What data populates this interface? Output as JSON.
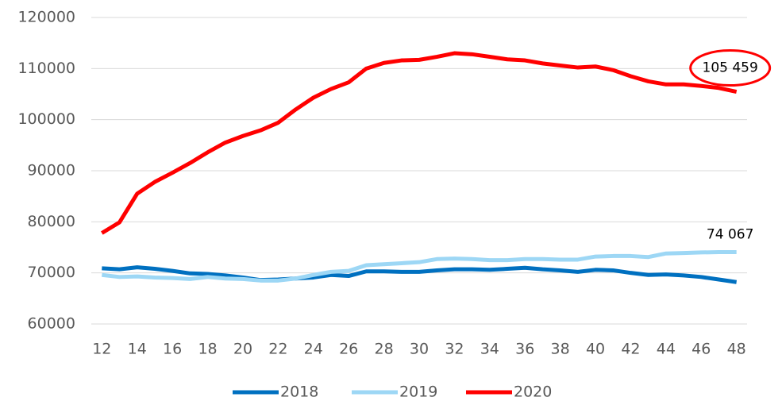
{
  "chart_data": {
    "type": "line",
    "x": [
      12,
      13,
      14,
      15,
      16,
      17,
      18,
      19,
      20,
      21,
      22,
      23,
      24,
      25,
      26,
      27,
      28,
      29,
      30,
      31,
      32,
      33,
      34,
      35,
      36,
      37,
      38,
      39,
      40,
      41,
      42,
      43,
      44,
      45,
      46,
      47,
      48
    ],
    "series": [
      {
        "name": "2018",
        "color": "#0070c0",
        "values": [
          70900,
          70700,
          71100,
          70800,
          70400,
          69900,
          69800,
          69500,
          69100,
          68600,
          68700,
          68900,
          69100,
          69600,
          69400,
          70300,
          70300,
          70200,
          70200,
          70500,
          70700,
          70700,
          70600,
          70800,
          71000,
          70700,
          70500,
          70200,
          70600,
          70500,
          70000,
          69600,
          69700,
          69500,
          69200,
          68700,
          68200
        ]
      },
      {
        "name": "2019",
        "color": "#9dd7f5",
        "values": [
          69600,
          69200,
          69300,
          69100,
          69000,
          68800,
          69200,
          68900,
          68800,
          68500,
          68500,
          68900,
          69600,
          70200,
          70400,
          71500,
          71700,
          71900,
          72100,
          72700,
          72800,
          72700,
          72500,
          72500,
          72700,
          72700,
          72600,
          72600,
          73200,
          73300,
          73300,
          73100,
          73800,
          73900,
          74000,
          74067,
          74067
        ],
        "value_labels": [
          null,
          null,
          null,
          null,
          null,
          null,
          null,
          null,
          null,
          null,
          null,
          null,
          null,
          null,
          null,
          null,
          null,
          null,
          null,
          null,
          null,
          null,
          null,
          null,
          null,
          null,
          null,
          null,
          null,
          null,
          null,
          null,
          null,
          null,
          null,
          null,
          "74 067"
        ]
      },
      {
        "name": "2020",
        "color": "#ff0000",
        "values": [
          77800,
          79900,
          85500,
          87800,
          89600,
          91500,
          93600,
          95500,
          96800,
          97900,
          99400,
          102000,
          104300,
          106000,
          107300,
          110000,
          111100,
          111600,
          111700,
          112300,
          113000,
          112800,
          112300,
          111800,
          111600,
          111000,
          110600,
          110200,
          110400,
          109700,
          108500,
          107500,
          106900,
          106900,
          106600,
          106200,
          105459
        ],
        "value_labels": [
          null,
          null,
          null,
          null,
          null,
          null,
          null,
          null,
          null,
          null,
          null,
          null,
          null,
          null,
          null,
          null,
          null,
          null,
          null,
          null,
          null,
          null,
          null,
          null,
          null,
          null,
          null,
          null,
          null,
          null,
          null,
          null,
          null,
          null,
          null,
          null,
          "105 459"
        ]
      }
    ],
    "xlim": [
      11.4,
      48.6
    ],
    "xticks": [
      12,
      14,
      16,
      18,
      20,
      22,
      24,
      26,
      28,
      30,
      32,
      34,
      36,
      38,
      40,
      42,
      44,
      46,
      48
    ],
    "ylim": [
      60000,
      120000
    ],
    "yticks": [
      60000,
      70000,
      80000,
      90000,
      100000,
      110000,
      120000
    ],
    "grid": true,
    "legend": "bottom"
  }
}
